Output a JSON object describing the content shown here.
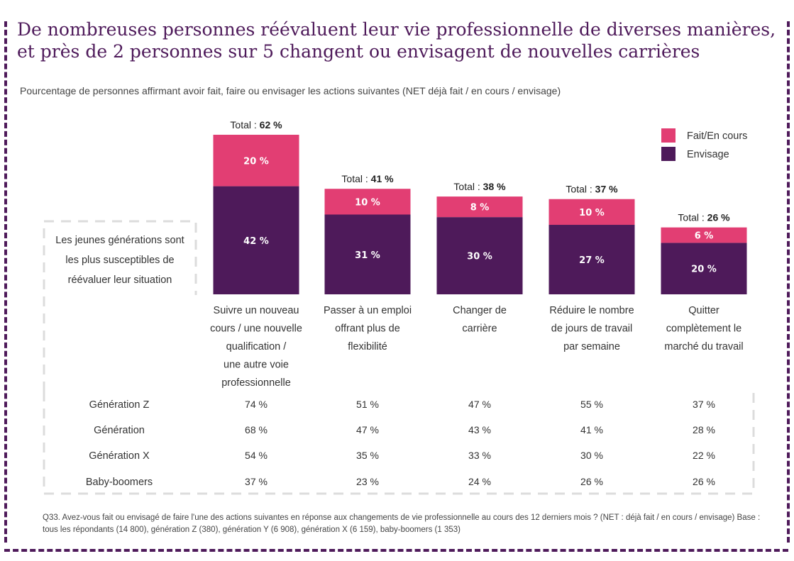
{
  "title": "De nombreuses personnes réévaluent leur vie professionnelle de diverses manières, et près de 2 personnes sur 5 changent ou envisagent de nouvelles carrières",
  "subtitle": "Pourcentage de personnes affirmant avoir fait, faire ou envisager les actions suivantes (NET déjà fait / en cours / envisage)",
  "note": [
    "Les jeunes générations sont",
    "les plus susceptibles de",
    "réévaluer leur situation"
  ],
  "total_prefix": "Total : ",
  "colors": {
    "fait": "#e23e73",
    "envisage": "#4e1a5a",
    "frame": "#4e1a5a",
    "dashed_box": "#dcdcdc"
  },
  "chart_data": {
    "type": "bar",
    "stacked": true,
    "unit": "%",
    "categories": [
      [
        "Suivre un nouveau",
        "cours / une nouvelle",
        "qualification /",
        "une autre voie",
        "professionnelle"
      ],
      [
        "Passer à un emploi",
        "offrant plus de",
        "flexibilité"
      ],
      [
        "Changer de",
        "carrière"
      ],
      [
        "Réduire le nombre",
        "de jours de travail",
        "par semaine"
      ],
      [
        "Quitter",
        "complètement le",
        "marché du travail"
      ]
    ],
    "series": [
      {
        "name": "Envisage",
        "color": "#4e1a5a",
        "values": [
          42,
          31,
          30,
          27,
          20
        ],
        "labels": [
          "42 %",
          "31 %",
          "30 %",
          "27 %",
          "20 %"
        ]
      },
      {
        "name": "Fait/En cours",
        "color": "#e23e73",
        "values": [
          20,
          10,
          8,
          10,
          6
        ],
        "labels": [
          "20 %",
          "10 %",
          "8 %",
          "10 %",
          "6 %"
        ]
      }
    ],
    "totals": [
      62,
      41,
      38,
      37,
      26
    ],
    "total_labels": [
      "62 %",
      "41 %",
      "38 %",
      "37 %",
      "26 %"
    ],
    "legend": {
      "position": "top-right",
      "entries": [
        "Fait/En cours",
        "Envisage"
      ]
    },
    "ylim": [
      0,
      62
    ],
    "grid": false
  },
  "generation_table": {
    "rows": [
      {
        "label": "Génération Z",
        "values": [
          "74 %",
          "51 %",
          "47 %",
          "55 %",
          "37 %"
        ]
      },
      {
        "label": "Génération",
        "values": [
          "68 %",
          "47 %",
          "43 %",
          "41 %",
          "28 %"
        ]
      },
      {
        "label": "Génération X",
        "values": [
          "54 %",
          "35 %",
          "33 %",
          "30 %",
          "22 %"
        ]
      },
      {
        "label": "Baby-boomers",
        "values": [
          "37 %",
          "23 %",
          "24 %",
          "26 %",
          "26 %"
        ]
      }
    ]
  },
  "footnote": "Q33. Avez-vous fait ou envisagé de faire l'une des actions suivantes en réponse aux changements de vie professionnelle au cours des 12 derniers mois ? (NET : déjà fait / en cours / envisage) Base : tous les répondants (14 800), génération Z (380), génération Y (6 908), génération X (6 159), baby-boomers (1 353)"
}
